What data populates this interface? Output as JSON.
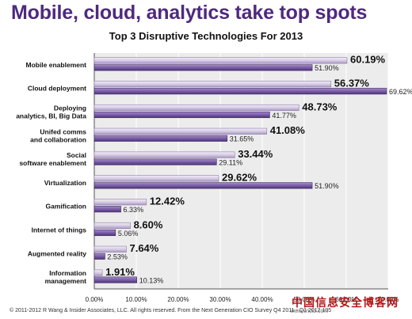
{
  "header": {
    "title": "Mobile, cloud, analytics take top spots"
  },
  "footer": {
    "text": "© 2011-2012 R Wang & Insider Associates, LLC.  All rights reserved.    From the Next Generation CIO Survey Q4 2011 - Q1 2012   105",
    "watermark": "中国信息安全博客网",
    "watermark_sub": "www.cncio.com"
  },
  "chart_data": {
    "type": "bar",
    "orientation": "horizontal",
    "title": "Top 3 Disruptive Technologies For 2013",
    "categories": [
      [
        "Mobile enablement"
      ],
      [
        "Cloud deployment"
      ],
      [
        "Deploying",
        "analytics, BI, Big Data"
      ],
      [
        "Unifed comms",
        "and collaboration"
      ],
      [
        "Social",
        "software enablement"
      ],
      [
        "Virtualization"
      ],
      [
        "Gamification"
      ],
      [
        "Internet of things"
      ],
      [
        "Augmented reality"
      ],
      [
        "Information",
        "management"
      ]
    ],
    "series": [
      {
        "values": [
          60.19,
          56.37,
          48.73,
          41.08,
          33.44,
          29.62,
          12.42,
          8.6,
          7.64,
          1.91
        ],
        "labels": [
          "60.19%",
          "56.37%",
          "48.73%",
          "41.08%",
          "33.44%",
          "29.62%",
          "12.42%",
          "8.60%",
          "7.64%",
          "1.91%"
        ],
        "color": "#d8cde6"
      },
      {
        "values": [
          51.9,
          69.62,
          41.77,
          31.65,
          29.11,
          51.9,
          6.33,
          5.06,
          2.53,
          10.13
        ],
        "labels": [
          "51.90%",
          "69.62%",
          "41.77%",
          "31.65%",
          "29.11%",
          "51.90%",
          "6.33%",
          "5.06%",
          "2.53%",
          "10.13%"
        ],
        "color": "#7b5ea7"
      }
    ],
    "xlim": [
      0,
      70
    ],
    "xticks": [
      0,
      10,
      20,
      30,
      40,
      50,
      60,
      70
    ],
    "xtick_labels": [
      "0.00%",
      "10.00%",
      "20.00%",
      "30.00%",
      "40.00%",
      "50.00%",
      "60.00%",
      "70.00%"
    ],
    "grid": true,
    "legend": "none"
  }
}
